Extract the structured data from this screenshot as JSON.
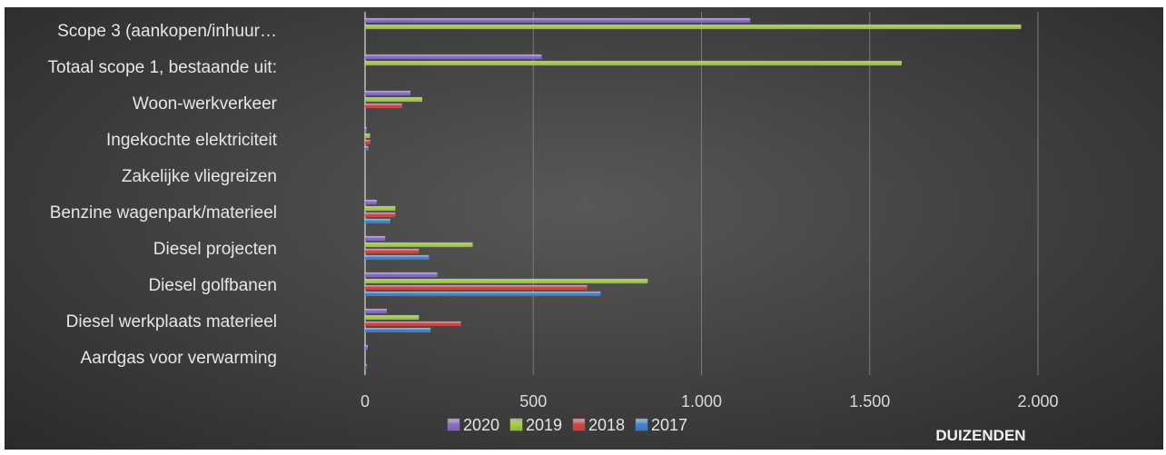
{
  "chart_data": {
    "type": "bar",
    "orientation": "horizontal",
    "title": "",
    "categories": [
      "Scope 3 (aankopen/inhuur…",
      "Totaal scope 1, bestaande uit:",
      "Woon-werkverkeer",
      "Ingekochte elektriciteit",
      "Zakelijke vliegreizen",
      "Benzine wagenpark/materieel",
      "Diesel projecten",
      "Diesel golfbanen",
      "Diesel werkplaats materieel",
      "Aardgas voor verwarming"
    ],
    "series": [
      {
        "name": "2020",
        "color": "#8e6bd0",
        "values": [
          1145,
          525,
          135,
          5,
          0,
          35,
          60,
          215,
          65,
          8
        ]
      },
      {
        "name": "2019",
        "color": "#a4d43a",
        "values": [
          1950,
          1595,
          170,
          15,
          0,
          90,
          320,
          840,
          160,
          0
        ]
      },
      {
        "name": "2018",
        "color": "#d84545",
        "values": [
          0,
          0,
          110,
          15,
          0,
          90,
          160,
          660,
          285,
          0
        ]
      },
      {
        "name": "2017",
        "color": "#3f86d6",
        "values": [
          0,
          0,
          0,
          10,
          0,
          75,
          190,
          700,
          195,
          5
        ]
      }
    ],
    "xticks": [
      "0",
      "500",
      "1.000",
      "1.500",
      "2.000"
    ],
    "xtick_values": [
      0,
      500,
      1000,
      1500,
      2000
    ],
    "xlim": [
      0,
      2300
    ],
    "unit_label": "DUIZENDEN",
    "legend_position": "bottom",
    "grid": true
  }
}
